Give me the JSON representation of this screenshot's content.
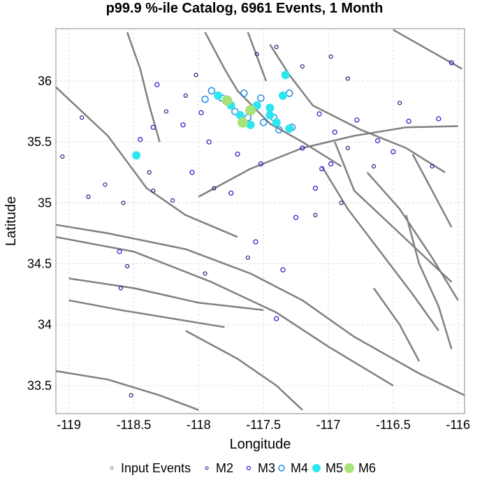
{
  "chart_data": {
    "type": "scatter",
    "title": "p99.9 %-ile Catalog, 6961 Events, 1 Month",
    "xlabel": "Longitude",
    "ylabel": "Latitude",
    "xlim": [
      -119.1,
      -115.95
    ],
    "ylim": [
      33.27,
      36.43
    ],
    "xticks": [
      -119,
      -118.5,
      -118,
      -117.5,
      -117,
      -116.5,
      -116
    ],
    "yticks": [
      33.5,
      34,
      34.5,
      35,
      35.5,
      36
    ],
    "xtick_labels": [
      "-119",
      "-118.5",
      "-118",
      "-117.5",
      "-117",
      "-116.5",
      "-116"
    ],
    "ytick_labels": [
      "33.5",
      "34",
      "34.5",
      "35",
      "35.5",
      "36"
    ],
    "grid": true,
    "legend_position": "bottom",
    "colors": {
      "input": "#888888",
      "M2": "#1a237e",
      "M3": "#3a1fd0",
      "M4": "#1e88e5",
      "M5": "#2ee6f0",
      "M6": "#a8e27a",
      "fault": "#808080",
      "grid": "#dddddd"
    },
    "legend": [
      {
        "label": "Input Events",
        "series": "input"
      },
      {
        "label": "M2",
        "series": "M2"
      },
      {
        "label": "M3",
        "series": "M3"
      },
      {
        "label": "M4",
        "series": "M4"
      },
      {
        "label": "M5",
        "series": "M5"
      },
      {
        "label": "M6",
        "series": "M6"
      }
    ],
    "series": [
      {
        "name": "M6",
        "points": [
          [
            -117.6,
            35.76
          ],
          [
            -117.66,
            35.66
          ],
          [
            -117.78,
            35.84
          ]
        ]
      },
      {
        "name": "M5",
        "points": [
          [
            -117.85,
            35.88
          ],
          [
            -117.75,
            35.8
          ],
          [
            -117.68,
            35.72
          ],
          [
            -117.6,
            35.64
          ],
          [
            -117.55,
            35.8
          ],
          [
            -117.45,
            35.72
          ],
          [
            -117.4,
            35.66
          ],
          [
            -117.45,
            35.78
          ],
          [
            -117.3,
            35.61
          ],
          [
            -117.33,
            36.05
          ],
          [
            -118.48,
            35.39
          ],
          [
            -117.35,
            35.88
          ]
        ]
      },
      {
        "name": "M4",
        "points": [
          [
            -117.9,
            35.92
          ],
          [
            -117.82,
            35.86
          ],
          [
            -117.72,
            35.75
          ],
          [
            -117.62,
            35.7
          ],
          [
            -117.5,
            35.66
          ],
          [
            -117.42,
            35.7
          ],
          [
            -117.38,
            35.6
          ],
          [
            -117.52,
            35.86
          ],
          [
            -117.65,
            35.9
          ],
          [
            -117.28,
            35.62
          ],
          [
            -117.3,
            35.9
          ],
          [
            -117.95,
            35.85
          ]
        ]
      },
      {
        "name": "M3",
        "points": [
          [
            -118.32,
            35.97
          ],
          [
            -118.48,
            35.38
          ],
          [
            -117.07,
            35.73
          ],
          [
            -116.95,
            35.58
          ],
          [
            -116.78,
            35.68
          ],
          [
            -116.62,
            35.51
          ],
          [
            -116.5,
            35.42
          ],
          [
            -116.38,
            35.67
          ],
          [
            -116.15,
            35.69
          ],
          [
            -116.05,
            36.15
          ],
          [
            -117.98,
            35.74
          ],
          [
            -118.12,
            35.64
          ],
          [
            -118.45,
            35.52
          ],
          [
            -118.35,
            35.62
          ],
          [
            -117.75,
            35.08
          ],
          [
            -117.56,
            34.68
          ],
          [
            -117.25,
            34.88
          ],
          [
            -117.35,
            34.45
          ],
          [
            -117.4,
            34.05
          ],
          [
            -118.61,
            34.6
          ],
          [
            -116.98,
            35.32
          ],
          [
            -117.1,
            35.12
          ],
          [
            -117.92,
            35.5
          ],
          [
            -117.7,
            35.4
          ],
          [
            -117.2,
            35.45
          ],
          [
            -117.52,
            35.32
          ],
          [
            -118.05,
            35.25
          ],
          [
            -117.05,
            35.28
          ]
        ]
      },
      {
        "name": "M2",
        "points": [
          [
            -118.58,
            35.0
          ],
          [
            -118.72,
            35.15
          ],
          [
            -118.9,
            35.7
          ],
          [
            -119.05,
            35.38
          ],
          [
            -118.6,
            34.3
          ],
          [
            -118.2,
            35.02
          ],
          [
            -117.88,
            35.12
          ],
          [
            -116.65,
            35.3
          ],
          [
            -116.45,
            35.82
          ],
          [
            -116.2,
            35.3
          ],
          [
            -118.02,
            36.05
          ],
          [
            -117.55,
            36.22
          ],
          [
            -117.4,
            36.28
          ],
          [
            -117.2,
            36.12
          ],
          [
            -116.98,
            36.2
          ],
          [
            -116.85,
            36.02
          ],
          [
            -118.25,
            35.75
          ],
          [
            -118.1,
            35.88
          ],
          [
            -118.38,
            35.25
          ],
          [
            -118.55,
            34.48
          ],
          [
            -117.95,
            34.42
          ],
          [
            -117.62,
            34.55
          ],
          [
            -117.1,
            34.9
          ],
          [
            -116.85,
            35.45
          ],
          [
            -118.85,
            35.05
          ],
          [
            -118.52,
            33.42
          ],
          [
            -118.35,
            35.1
          ],
          [
            -116.9,
            35.0
          ]
        ]
      }
    ],
    "faults": [
      [
        [
          -119.1,
          34.82
        ],
        [
          -118.7,
          34.75
        ],
        [
          -118.1,
          34.62
        ],
        [
          -117.6,
          34.42
        ],
        [
          -117.2,
          34.2
        ],
        [
          -116.8,
          33.9
        ],
        [
          -116.3,
          33.6
        ],
        [
          -115.95,
          33.42
        ]
      ],
      [
        [
          -119.1,
          34.72
        ],
        [
          -118.5,
          34.6
        ],
        [
          -117.9,
          34.35
        ],
        [
          -117.4,
          34.1
        ],
        [
          -117.0,
          33.82
        ],
        [
          -116.5,
          33.5
        ]
      ],
      [
        [
          -119.1,
          35.95
        ],
        [
          -118.7,
          35.55
        ],
        [
          -118.4,
          35.12
        ],
        [
          -118.1,
          34.9
        ],
        [
          -117.7,
          34.72
        ]
      ],
      [
        [
          -118.0,
          35.05
        ],
        [
          -117.6,
          35.28
        ],
        [
          -117.2,
          35.45
        ],
        [
          -116.8,
          35.55
        ],
        [
          -116.4,
          35.62
        ],
        [
          -116.0,
          35.63
        ]
      ],
      [
        [
          -117.95,
          36.4
        ],
        [
          -117.8,
          36.1
        ],
        [
          -117.7,
          35.92
        ],
        [
          -117.45,
          35.65
        ],
        [
          -117.2,
          35.5
        ],
        [
          -116.9,
          35.3
        ]
      ],
      [
        [
          -117.45,
          36.3
        ],
        [
          -117.3,
          36.05
        ],
        [
          -117.12,
          35.8
        ],
        [
          -116.75,
          35.6
        ],
        [
          -116.4,
          35.45
        ],
        [
          -116.1,
          35.25
        ]
      ],
      [
        [
          -116.95,
          35.5
        ],
        [
          -116.8,
          35.1
        ],
        [
          -116.55,
          34.85
        ],
        [
          -116.3,
          34.6
        ],
        [
          -116.05,
          34.35
        ]
      ],
      [
        [
          -117.05,
          35.3
        ],
        [
          -116.85,
          34.95
        ],
        [
          -116.6,
          34.6
        ],
        [
          -116.35,
          34.25
        ],
        [
          -116.15,
          33.95
        ]
      ],
      [
        [
          -116.7,
          35.25
        ],
        [
          -116.45,
          34.95
        ],
        [
          -116.2,
          34.55
        ],
        [
          -116.0,
          34.2
        ]
      ],
      [
        [
          -116.35,
          35.4
        ],
        [
          -116.2,
          35.1
        ],
        [
          -116.05,
          34.8
        ]
      ],
      [
        [
          -119.1,
          33.62
        ],
        [
          -118.7,
          33.55
        ],
        [
          -118.3,
          33.42
        ],
        [
          -118.0,
          33.3
        ]
      ],
      [
        [
          -118.1,
          33.95
        ],
        [
          -117.7,
          33.72
        ],
        [
          -117.4,
          33.5
        ],
        [
          -117.2,
          33.3
        ]
      ],
      [
        [
          -119.0,
          34.2
        ],
        [
          -118.6,
          34.12
        ],
        [
          -118.2,
          34.05
        ],
        [
          -117.8,
          33.98
        ]
      ],
      [
        [
          -119.0,
          34.38
        ],
        [
          -118.5,
          34.3
        ],
        [
          -118.0,
          34.18
        ],
        [
          -117.5,
          34.12
        ]
      ],
      [
        [
          -118.55,
          36.4
        ],
        [
          -118.45,
          36.1
        ],
        [
          -118.38,
          35.8
        ],
        [
          -118.3,
          35.5
        ]
      ],
      [
        [
          -117.62,
          36.4
        ],
        [
          -117.55,
          36.2
        ],
        [
          -117.48,
          36.0
        ]
      ],
      [
        [
          -116.4,
          34.9
        ],
        [
          -116.3,
          34.5
        ],
        [
          -116.15,
          34.15
        ],
        [
          -116.05,
          33.8
        ]
      ],
      [
        [
          -116.65,
          34.3
        ],
        [
          -116.45,
          34.0
        ],
        [
          -116.3,
          33.7
        ]
      ],
      [
        [
          -116.5,
          36.42
        ],
        [
          -115.97,
          36.1
        ]
      ]
    ]
  }
}
